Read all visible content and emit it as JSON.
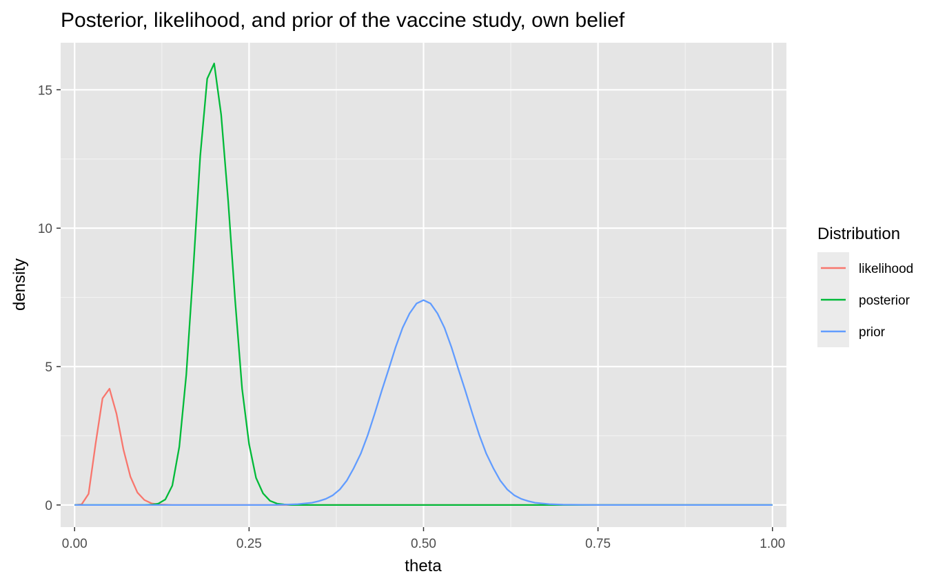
{
  "chart_data": {
    "type": "line",
    "title": "Posterior, likelihood, and prior of the vaccine study, own belief",
    "xlabel": "theta",
    "ylabel": "density",
    "xlim": [
      -0.02,
      1.02
    ],
    "ylim": [
      -0.8,
      16.7
    ],
    "x_ticks": [
      0.0,
      0.25,
      0.5,
      0.75,
      1.0
    ],
    "x_tick_labels": [
      "0.00",
      "0.25",
      "0.50",
      "0.75",
      "1.00"
    ],
    "y_ticks": [
      0,
      5,
      10,
      15
    ],
    "y_tick_labels": [
      "0",
      "5",
      "10",
      "15"
    ],
    "grid": true,
    "legend": {
      "title": "Distribution",
      "position": "right"
    },
    "series": [
      {
        "name": "likelihood",
        "color": "#F8766D",
        "x": [
          0.0,
          0.01,
          0.02,
          0.03,
          0.04,
          0.05,
          0.06,
          0.07,
          0.08,
          0.09,
          0.1,
          0.11,
          0.12,
          0.13,
          0.14,
          0.15,
          0.2,
          0.3,
          0.5,
          0.75,
          1.0
        ],
        "y": [
          0,
          0.02,
          0.4,
          2.2,
          3.85,
          4.2,
          3.3,
          2.0,
          1.02,
          0.45,
          0.18,
          0.06,
          0.02,
          0.01,
          0,
          0,
          0,
          0,
          0,
          0,
          0
        ]
      },
      {
        "name": "posterior",
        "color": "#00BA38",
        "x": [
          0.0,
          0.1,
          0.11,
          0.12,
          0.13,
          0.14,
          0.15,
          0.16,
          0.17,
          0.18,
          0.19,
          0.2,
          0.21,
          0.22,
          0.23,
          0.24,
          0.25,
          0.26,
          0.27,
          0.28,
          0.29,
          0.3,
          0.31,
          0.32,
          0.4,
          0.5,
          0.75,
          1.0
        ],
        "y": [
          0,
          0,
          0.01,
          0.05,
          0.2,
          0.7,
          2.1,
          4.7,
          8.5,
          12.6,
          15.4,
          15.95,
          14.1,
          11.0,
          7.4,
          4.2,
          2.2,
          0.98,
          0.42,
          0.15,
          0.05,
          0.02,
          0,
          0,
          0,
          0,
          0,
          0
        ]
      },
      {
        "name": "prior",
        "color": "#619CFF",
        "x": [
          0.0,
          0.25,
          0.28,
          0.3,
          0.32,
          0.34,
          0.35,
          0.36,
          0.37,
          0.38,
          0.39,
          0.4,
          0.41,
          0.42,
          0.43,
          0.44,
          0.45,
          0.46,
          0.47,
          0.48,
          0.49,
          0.5,
          0.51,
          0.52,
          0.53,
          0.54,
          0.55,
          0.56,
          0.57,
          0.58,
          0.59,
          0.6,
          0.61,
          0.62,
          0.63,
          0.64,
          0.65,
          0.66,
          0.68,
          0.7,
          0.75,
          1.0
        ],
        "y": [
          0,
          0,
          0,
          0.01,
          0.03,
          0.08,
          0.14,
          0.22,
          0.35,
          0.56,
          0.88,
          1.33,
          1.85,
          2.52,
          3.3,
          4.12,
          4.9,
          5.7,
          6.4,
          6.92,
          7.28,
          7.4,
          7.28,
          6.92,
          6.4,
          5.7,
          4.9,
          4.12,
          3.3,
          2.52,
          1.85,
          1.33,
          0.88,
          0.56,
          0.35,
          0.22,
          0.14,
          0.08,
          0.03,
          0.01,
          0,
          0
        ]
      }
    ]
  }
}
